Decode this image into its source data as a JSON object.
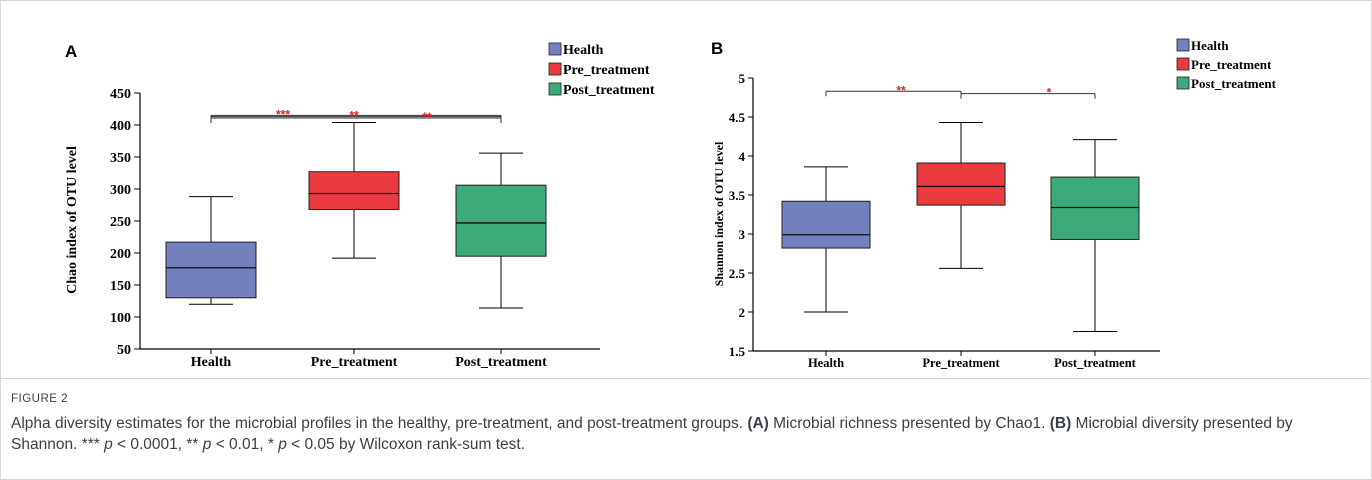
{
  "colors": {
    "health": "#7480bd",
    "pre_treatment": "#ec3b3f",
    "post_treatment": "#3caa79",
    "significance": "#e02020"
  },
  "chart_data": [
    {
      "panel": "A",
      "type": "box",
      "ylabel": "Chao index of OTU level",
      "ylim": [
        50,
        450
      ],
      "yticks": [
        "50",
        "100",
        "150",
        "200",
        "250",
        "300",
        "350",
        "400",
        "450"
      ],
      "categories": [
        "Health",
        "Pre_treatment",
        "Post_treatment"
      ],
      "legend": [
        "Health",
        "Pre_treatment",
        "Post_treatment"
      ],
      "boxes": [
        {
          "name": "Health",
          "min": 120,
          "q1": 130,
          "median": 177,
          "q3": 217,
          "max": 288
        },
        {
          "name": "Pre_treatment",
          "min": 192,
          "q1": 268,
          "median": 293,
          "q3": 327,
          "max": 404
        },
        {
          "name": "Post_treatment",
          "min": 114,
          "q1": 195,
          "median": 247,
          "q3": 306,
          "max": 356
        }
      ],
      "significance": [
        {
          "from": "Health",
          "to": "Post_treatment",
          "y": 415,
          "label": "***"
        },
        {
          "from": "Health",
          "to": "Post_treatment",
          "y": 413,
          "label": "**"
        },
        {
          "from": "Health",
          "to": "Post_treatment",
          "y": 411,
          "label": "**"
        }
      ]
    },
    {
      "panel": "B",
      "type": "box",
      "ylabel": "Shannon index of OTU level",
      "ylim": [
        1.5,
        5
      ],
      "yticks": [
        "1.5",
        "2",
        "2.5",
        "3",
        "3.5",
        "4",
        "4.5",
        "5"
      ],
      "categories": [
        "Health",
        "Pre_treatment",
        "Post_treatment"
      ],
      "legend": [
        "Health",
        "Pre_treatment",
        "Post_treatment"
      ],
      "boxes": [
        {
          "name": "Health",
          "min": 2.0,
          "q1": 2.82,
          "median": 2.99,
          "q3": 3.42,
          "max": 3.86
        },
        {
          "name": "Pre_treatment",
          "min": 2.56,
          "q1": 3.37,
          "median": 3.61,
          "q3": 3.91,
          "max": 4.43
        },
        {
          "name": "Post_treatment",
          "min": 1.75,
          "q1": 2.93,
          "median": 3.34,
          "q3": 3.73,
          "max": 4.21
        }
      ],
      "significance": [
        {
          "from": "Health",
          "to": "Pre_treatment",
          "y": 4.83,
          "label": "**"
        },
        {
          "from": "Pre_treatment",
          "to": "Post_treatment",
          "y": 4.8,
          "label": "*"
        }
      ]
    }
  ],
  "figure_label": "FIGURE 2",
  "caption": {
    "intro": "Alpha diversity estimates for the microbial profiles in the healthy, pre-treatment, and post-treatment groups. ",
    "a_label": "(A)",
    "a_text": " Microbial richness presented by Chao1. ",
    "b_label": "(B)",
    "b_text": " Microbial diversity presented by Shannon. *** ",
    "p1": "p",
    "t1": " < 0.0001, ** ",
    "p2": "p",
    "t2": " < 0.01, * ",
    "p3": "p",
    "t3": " < 0.05 by Wilcoxon rank-sum test."
  }
}
